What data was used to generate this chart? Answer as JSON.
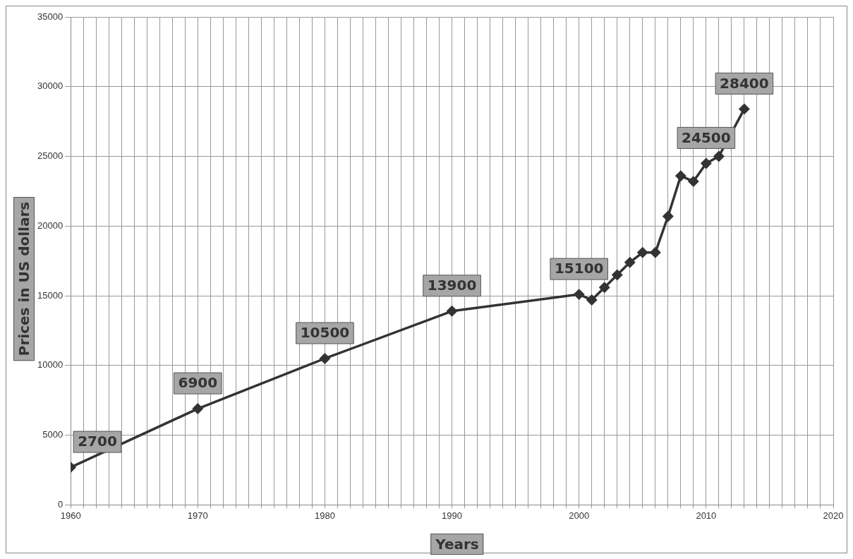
{
  "chart_data": {
    "type": "line",
    "xlabel": "Years",
    "ylabel": "Prices in US dollars",
    "x": [
      1960,
      1970,
      1980,
      1990,
      2000,
      2001,
      2002,
      2003,
      2004,
      2005,
      2006,
      2007,
      2008,
      2009,
      2010,
      2011,
      2013
    ],
    "series": [
      {
        "color": "#333333",
        "values": [
          2700,
          6900,
          10500,
          13900,
          15100,
          14700,
          15600,
          16500,
          17400,
          18100,
          18100,
          20700,
          23600,
          23200,
          24500,
          25000,
          28400
        ],
        "value_labels": [
          "2700",
          "6900",
          "10500",
          "13900",
          "15100",
          null,
          null,
          null,
          null,
          null,
          null,
          null,
          null,
          null,
          "24500",
          null,
          "28400"
        ]
      }
    ],
    "xlim": [
      1960,
      2020
    ],
    "xticks": [
      1960,
      {
        "value": 1961,
        "label": null
      },
      {
        "value": 1962,
        "label": null
      },
      {
        "value": 1963,
        "label": null
      },
      {
        "value": 1964,
        "label": null
      },
      {
        "value": 1965,
        "label": null
      },
      {
        "value": 1966,
        "label": null
      },
      {
        "value": 1967,
        "label": null
      },
      {
        "value": 1968,
        "label": null
      },
      {
        "value": 1969,
        "label": null
      },
      1970,
      {
        "value": 1971,
        "label": null
      },
      {
        "value": 1972,
        "label": null
      },
      {
        "value": 1973,
        "label": null
      },
      {
        "value": 1974,
        "label": null
      },
      {
        "value": 1975,
        "label": null
      },
      {
        "value": 1976,
        "label": null
      },
      {
        "value": 1977,
        "label": null
      },
      {
        "value": 1978,
        "label": null
      },
      {
        "value": 1979,
        "label": null
      },
      1980,
      {
        "value": 1981,
        "label": null
      },
      {
        "value": 1982,
        "label": null
      },
      {
        "value": 1983,
        "label": null
      },
      {
        "value": 1984,
        "label": null
      },
      {
        "value": 1985,
        "label": null
      },
      {
        "value": 1986,
        "label": null
      },
      {
        "value": 1987,
        "label": null
      },
      {
        "value": 1988,
        "label": null
      },
      {
        "value": 1989,
        "label": null
      },
      1990,
      {
        "value": 1991,
        "label": null
      },
      {
        "value": 1992,
        "label": null
      },
      {
        "value": 1993,
        "label": null
      },
      {
        "value": 1994,
        "label": null
      },
      {
        "value": 1995,
        "label": null
      },
      {
        "value": 1996,
        "label": null
      },
      {
        "value": 1997,
        "label": null
      },
      {
        "value": 1998,
        "label": null
      },
      {
        "value": 1999,
        "label": null
      },
      2000,
      {
        "value": 2001,
        "label": null
      },
      {
        "value": 2002,
        "label": null
      },
      {
        "value": 2003,
        "label": null
      },
      {
        "value": 2004,
        "label": null
      },
      {
        "value": 2005,
        "label": null
      },
      {
        "value": 2006,
        "label": null
      },
      {
        "value": 2007,
        "label": null
      },
      {
        "value": 2008,
        "label": null
      },
      {
        "value": 2009,
        "label": null
      },
      2010,
      {
        "value": 2011,
        "label": null
      },
      {
        "value": 2012,
        "label": null
      },
      {
        "value": 2013,
        "label": null
      },
      {
        "value": 2014,
        "label": null
      },
      {
        "value": 2015,
        "label": null
      },
      {
        "value": 2016,
        "label": null
      },
      {
        "value": 2017,
        "label": null
      },
      {
        "value": 2018,
        "label": null
      },
      {
        "value": 2019,
        "label": null
      },
      2020
    ],
    "ylim": [
      0,
      35000
    ],
    "yticks": [
      0,
      5000,
      10000,
      15000,
      20000,
      25000,
      30000,
      35000
    ],
    "grid": true,
    "legend": false,
    "marker": "diamond",
    "line_style": "solid"
  }
}
